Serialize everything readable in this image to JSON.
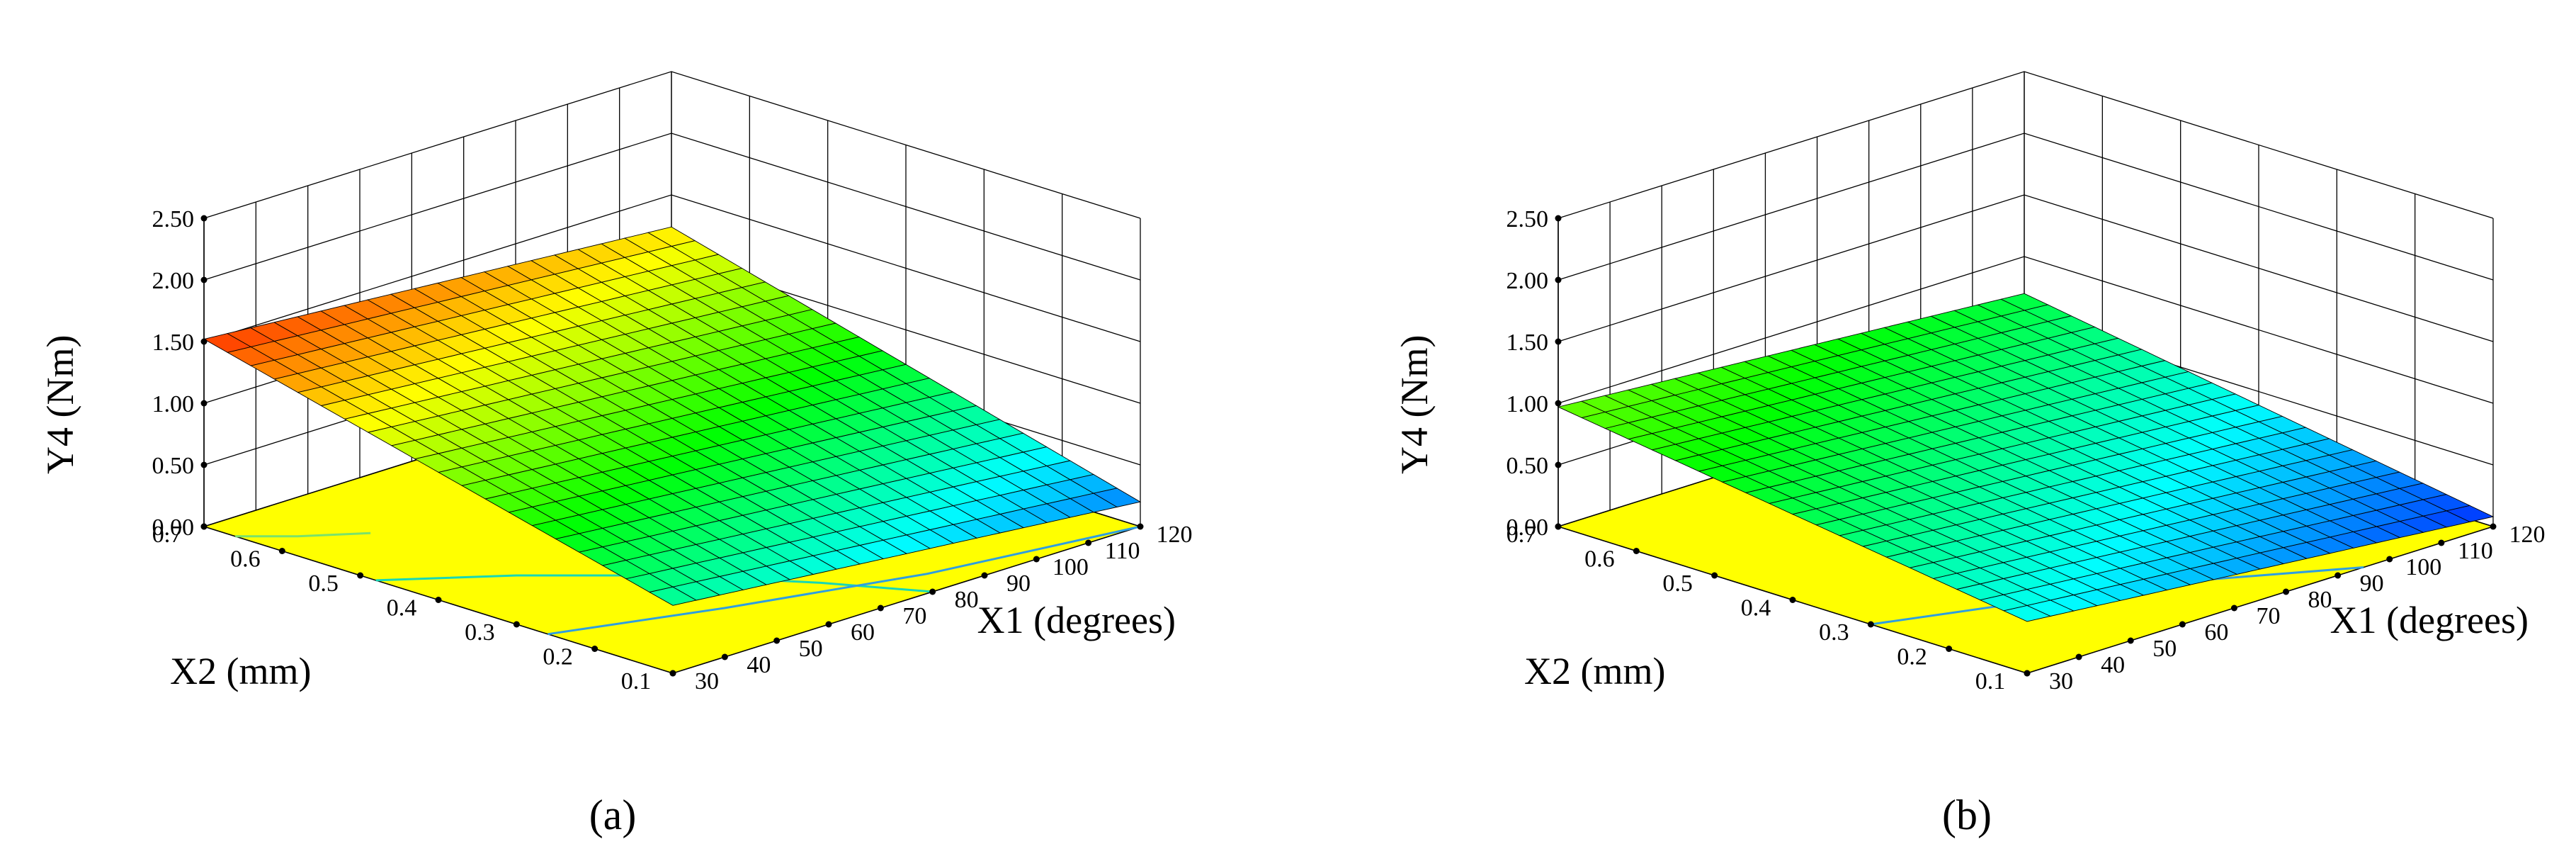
{
  "chart_data": [
    {
      "type": "surface3d",
      "caption": "(a)",
      "zlabel": "Y4 (Nm)",
      "xlabel": "X1 (degrees)",
      "ylabel": "X2 (mm)",
      "xlim": [
        30,
        120
      ],
      "ylim": [
        0.1,
        0.7
      ],
      "zlim": [
        0.0,
        2.5
      ],
      "x_ticks": [
        "30",
        "40",
        "50",
        "60",
        "70",
        "80",
        "90",
        "100",
        "110",
        "120"
      ],
      "y_ticks": [
        "0.1",
        "0.2",
        "0.3",
        "0.4",
        "0.5",
        "0.6",
        "0.7"
      ],
      "z_ticks": [
        "0.00",
        "0.50",
        "1.00",
        "1.50",
        "2.00",
        "2.50"
      ],
      "surface_corners": {
        "x30_y0.1": 0.55,
        "x120_y0.1": 0.2,
        "x30_y0.7": 1.52,
        "x120_y0.7": 1.24
      },
      "colormap": [
        "#0000ff",
        "#00ffff",
        "#00ff00",
        "#ffff00",
        "#ff0000"
      ],
      "floor_color": "#ffff00",
      "contours": [
        {
          "level": 1.25,
          "color": "#7be26a",
          "points": [
            [
              30,
              0.66
            ],
            [
              36,
              0.62
            ],
            [
              44,
              0.58
            ]
          ]
        },
        {
          "level": 1.0,
          "color": "#18d8b4",
          "points": [
            [
              30,
              0.48
            ],
            [
              45,
              0.4
            ],
            [
              60,
              0.3
            ],
            [
              72,
              0.19
            ],
            [
              80,
              0.1
            ]
          ]
        },
        {
          "level": 0.75,
          "color": "#2f9ee0",
          "points": [
            [
              30,
              0.26
            ],
            [
              55,
              0.2
            ],
            [
              85,
              0.14
            ],
            [
              120,
              0.1
            ]
          ]
        }
      ]
    },
    {
      "type": "surface3d",
      "caption": "(b)",
      "zlabel": "Y4 (Nm)",
      "xlabel": "X1 (degrees)",
      "ylabel": "X2 (mm)",
      "xlim": [
        30,
        120
      ],
      "ylim": [
        0.1,
        0.7
      ],
      "zlim": [
        0.0,
        2.5
      ],
      "x_ticks": [
        "30",
        "40",
        "50",
        "60",
        "70",
        "80",
        "90",
        "100",
        "110",
        "120"
      ],
      "y_ticks": [
        "0.1",
        "0.2",
        "0.3",
        "0.4",
        "0.5",
        "0.6",
        "0.7"
      ],
      "z_ticks": [
        "0.00",
        "0.50",
        "1.00",
        "1.50",
        "2.00",
        "2.50"
      ],
      "surface_corners": {
        "x30_y0.1": 0.42,
        "x120_y0.1": 0.08,
        "x30_y0.7": 0.97,
        "x120_y0.7": 0.7
      },
      "colormap": [
        "#0000ff",
        "#00ffff",
        "#00ff00",
        "#ffff00",
        "#ff0000"
      ],
      "floor_color": "#ffff00",
      "contours": [
        {
          "level": 0.5,
          "color": "#2f9ee0",
          "points": [
            [
              30,
              0.3
            ],
            [
              50,
              0.25
            ],
            [
              70,
              0.2
            ],
            [
              95,
              0.1
            ]
          ]
        }
      ]
    }
  ]
}
